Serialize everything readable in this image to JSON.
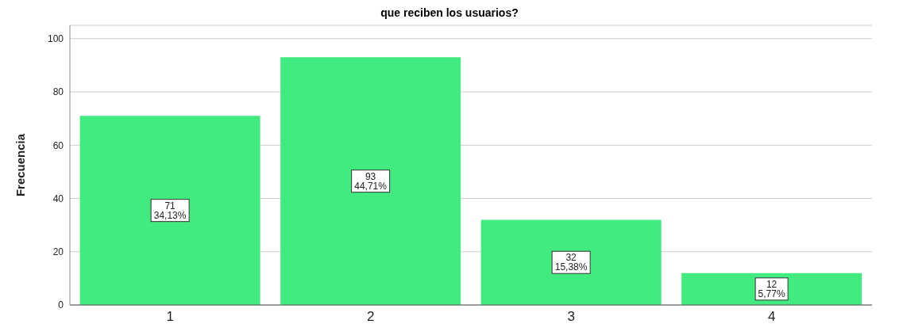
{
  "chart_data": {
    "type": "bar",
    "title": "que reciben los usuarios?",
    "ylabel": "Frecuencia",
    "categories": [
      "1",
      "2",
      "3",
      "4"
    ],
    "values": [
      71,
      93,
      32,
      12
    ],
    "color": "#42eb7f",
    "value_labels": [
      "71\n34,13%",
      "93\n44,71%",
      "32\n15,38%",
      "12\n5,77%"
    ],
    "ylim": [
      0,
      105
    ],
    "yticks": [
      0,
      20,
      40,
      60,
      80,
      100
    ],
    "grid": "y"
  }
}
